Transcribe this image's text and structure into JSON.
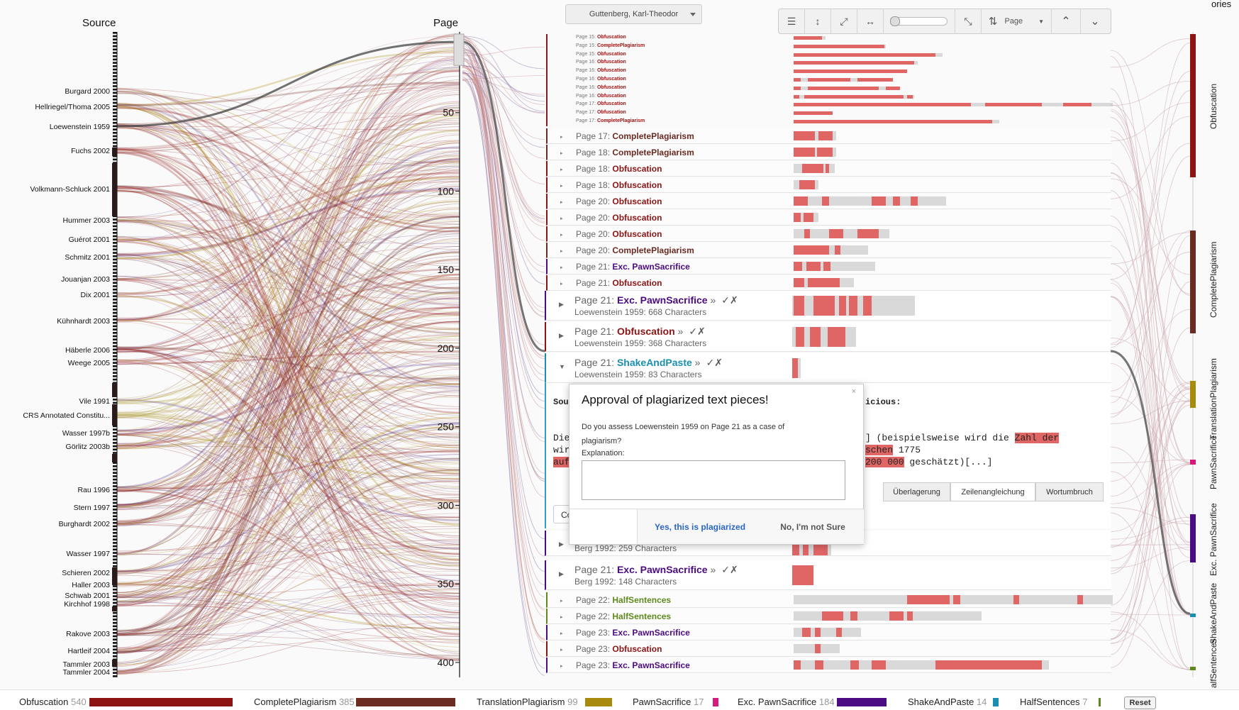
{
  "columns": {
    "source_title": "Source",
    "page_title": "Page",
    "categories_title": "ories"
  },
  "sources": [
    "Burgard 2000",
    "Hellriegel/Thoma 2005",
    "Loewenstein 1959",
    "Fuchs 2002",
    "Volkmann-Schluck 2001",
    "Hummer 2003",
    "Guérot 2001",
    "Schmitz 2001",
    "Jouanjan 2003",
    "Dix 2001",
    "Kühnhardt 2003",
    "Häberle 2006",
    "Weege 2005",
    "Vile 1991",
    "CRS Annotated Constitu...",
    "Wasser 1997b",
    "Görlitz 2003b",
    "Rau 1996",
    "Stern 1997",
    "Burghardt 2002",
    "Wasser 1997",
    "Schieren 2002",
    "Haller 2003",
    "Schwab 2001",
    "Kirchhof 1998",
    "Rakove 2003",
    "Hartleif 2004",
    "Tammler 2003",
    "Tammler 2004"
  ],
  "page_ticks": [
    "50",
    "100",
    "150",
    "200",
    "250",
    "300",
    "350",
    "400"
  ],
  "author_select": {
    "value": "Guttenberg, Karl-Theodor"
  },
  "toolbar": {
    "sort_label": "Page"
  },
  "mini_rows": [
    {
      "page": "Page 15:",
      "cat": "Obfuscation"
    },
    {
      "page": "Page 15:",
      "cat": "CompletePlagiarism"
    },
    {
      "page": "Page 15:",
      "cat": "Obfuscation"
    },
    {
      "page": "Page 16:",
      "cat": "Obfuscation"
    },
    {
      "page": "Page 16:",
      "cat": "Obfuscation"
    },
    {
      "page": "Page 16:",
      "cat": "Obfuscation"
    },
    {
      "page": "Page 16:",
      "cat": "Obfuscation"
    },
    {
      "page": "Page 16:",
      "cat": "Obfuscation"
    },
    {
      "page": "Page 17:",
      "cat": "Obfuscation"
    },
    {
      "page": "Page 17:",
      "cat": "Obfuscation"
    },
    {
      "page": "Page 17:",
      "cat": "CompletePlagiarism"
    }
  ],
  "rows": [
    {
      "page": "Page 17:",
      "cat": "CompletePlagiarism"
    },
    {
      "page": "Page 18:",
      "cat": "CompletePlagiarism"
    },
    {
      "page": "Page 18:",
      "cat": "Obfuscation"
    },
    {
      "page": "Page 18:",
      "cat": "Obfuscation"
    },
    {
      "page": "Page 20:",
      "cat": "Obfuscation"
    },
    {
      "page": "Page 20:",
      "cat": "Obfuscation"
    },
    {
      "page": "Page 20:",
      "cat": "Obfuscation"
    },
    {
      "page": "Page 20:",
      "cat": "CompletePlagiarism"
    },
    {
      "page": "Page 21:",
      "cat": "Exc. PawnSacrifice"
    },
    {
      "page": "Page 21:",
      "cat": "Obfuscation"
    }
  ],
  "big_rows": [
    {
      "page": "Page 21:",
      "cat": "Exc. PawnSacrifice",
      "arrow": "»",
      "checks": "✓✗",
      "sub": "Loewenstein 1959: 668 Characters"
    },
    {
      "page": "Page 21:",
      "cat": "Obfuscation",
      "arrow": "»",
      "checks": "✓✗",
      "sub": "Loewenstein 1959: 368 Characters"
    },
    {
      "page": "Page 21:",
      "cat": "ShakeAndPaste",
      "arrow": "»",
      "checks": "✓✗",
      "sub": "Loewenstein 1959: 83 Characters"
    }
  ],
  "detail": {
    "source_head": "Sou",
    "susp_head": "icious:",
    "left_lines": [
      "Die",
      "wir",
      "auf"
    ],
    "right_line1_pre": "] (beispielsweise wird die ",
    "right_line1_hl": "Zahl der",
    "right_line2_hl": "schen",
    "right_line2_post": " 1775",
    "right_line3_hl": "200 000",
    "right_line3_post": " geschätzt)[...]",
    "collapsed_prefix": "Co",
    "buttons": [
      "Überlagerung",
      "Zeilenangleichung",
      "Wortumbruch"
    ]
  },
  "after_rows": [
    {
      "sub": "Berg 1992: 259 Characters"
    },
    {
      "page": "Page 21:",
      "cat": "Exc. PawnSacrifice",
      "arrow": "»",
      "checks": "✓✗",
      "sub": "Berg 1992: 148 Characters"
    }
  ],
  "tail_rows": [
    {
      "page": "Page 22:",
      "cat": "HalfSentences"
    },
    {
      "page": "Page 22:",
      "cat": "HalfSentences"
    },
    {
      "page": "Page 23:",
      "cat": "Exc. PawnSacrifice"
    },
    {
      "page": "Page 23:",
      "cat": "Obfuscation"
    },
    {
      "page": "Page 23:",
      "cat": "Exc. PawnSacrifice"
    }
  ],
  "modal": {
    "title": "Approval of plagiarized text pieces!",
    "close": "×",
    "question": "Do you assess Loewenstein 1959 on Page 21 as a case of plagiarism?",
    "explanation_label": "Explanation:",
    "yes": "Yes, this is plagiarized",
    "no": "No, I'm not Sure"
  },
  "categories": [
    {
      "name": "Obfuscation",
      "count": "540",
      "color": "#8e1414"
    },
    {
      "name": "CompletePlagiarism",
      "count": "385",
      "color": "#6b2a22"
    },
    {
      "name": "TranslationPlagiarism",
      "count": "99",
      "color": "#a88a0c"
    },
    {
      "name": "PawnSacrifice",
      "count": "17",
      "color": "#d6197a"
    },
    {
      "name": "Exc. PawnSacrifice",
      "count": "184",
      "color": "#4b0b82"
    },
    {
      "name": "ShakeAndPaste",
      "count": "14",
      "color": "#1a8fb0"
    },
    {
      "name": "HalfSentences",
      "count": "7",
      "color": "#5e8a1c"
    }
  ],
  "right_axis_labels": [
    "Obfuscation",
    "CompletePlagiarism",
    "TranslationPlagiarism",
    "PawnSacrifice",
    "Exc. PawnSacrifice",
    "ShakeAndPaste",
    "alfSentences"
  ],
  "reset_label": "Reset"
}
